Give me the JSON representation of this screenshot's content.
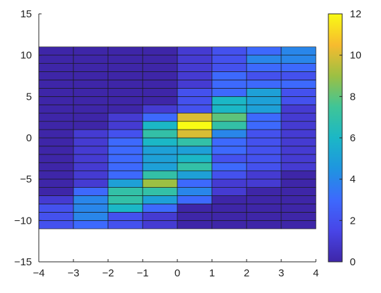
{
  "chart_data": {
    "type": "heatmap",
    "title": "",
    "xlabel": "",
    "ylabel": "",
    "xlim": [
      -4,
      4
    ],
    "ylim": [
      -15,
      15
    ],
    "x_ticks": [
      -4,
      -3,
      -2,
      -1,
      0,
      1,
      2,
      3,
      4
    ],
    "y_ticks": [
      -15,
      -10,
      -5,
      0,
      5,
      10,
      15
    ],
    "x_tick_labels": [
      "−4",
      "−3",
      "−2",
      "−1",
      "0",
      "1",
      "2",
      "3",
      "4"
    ],
    "y_tick_labels": [
      "−15",
      "−10",
      "−5",
      "0",
      "5",
      "10",
      "15"
    ],
    "x_edges": [
      -4,
      -3,
      -2,
      -1,
      0,
      1,
      2,
      3,
      4
    ],
    "y_edges": [
      -11,
      -10,
      -9,
      -8,
      -7,
      -6,
      -5,
      -4,
      -3,
      -2,
      -1,
      0,
      1,
      2,
      3,
      4,
      5,
      6,
      7,
      8,
      9,
      10,
      11
    ],
    "values": [
      [
        2,
        3,
        2,
        1,
        0,
        0,
        0,
        0
      ],
      [
        2,
        4,
        2,
        1,
        0,
        0,
        0,
        0
      ],
      [
        2,
        4,
        6,
        3,
        0,
        0,
        0,
        0
      ],
      [
        1,
        4,
        7,
        5,
        3,
        0,
        0,
        0
      ],
      [
        0,
        3,
        7,
        7,
        4,
        1,
        0,
        0
      ],
      [
        0,
        1,
        5,
        9,
        3,
        1,
        1,
        0
      ],
      [
        0,
        1,
        3,
        7,
        5,
        2,
        1,
        0
      ],
      [
        0,
        1,
        3,
        5,
        7,
        3,
        2,
        1
      ],
      [
        0,
        1,
        3,
        5,
        6,
        2,
        2,
        1
      ],
      [
        0,
        1,
        3,
        5,
        5,
        3,
        2,
        1
      ],
      [
        0,
        1,
        3,
        6,
        7,
        3,
        2,
        1
      ],
      [
        0,
        1,
        2,
        7,
        10,
        4,
        2,
        1
      ],
      [
        0,
        0,
        1,
        6,
        12,
        7,
        3,
        1
      ],
      [
        0,
        0,
        1,
        3,
        10,
        8,
        3,
        1
      ],
      [
        0,
        0,
        0,
        1,
        2,
        6,
        5,
        1
      ],
      [
        0,
        0,
        0,
        0,
        2,
        6,
        5,
        2
      ],
      [
        0,
        0,
        0,
        0,
        2,
        3,
        5,
        2
      ],
      [
        0,
        0,
        0,
        0,
        1,
        3,
        3,
        3
      ],
      [
        0,
        0,
        0,
        0,
        1,
        3,
        2,
        2
      ],
      [
        0,
        0,
        0,
        0,
        1,
        2,
        3,
        3
      ],
      [
        0,
        0,
        0,
        0,
        1,
        2,
        4,
        4
      ],
      [
        0,
        0,
        0,
        0,
        1,
        2,
        3,
        4
      ]
    ],
    "colormap": "parula",
    "colorbar": {
      "min": 0,
      "max": 12,
      "ticks": [
        0,
        2,
        4,
        6,
        8,
        10,
        12
      ],
      "tick_labels": [
        "0",
        "2",
        "4",
        "6",
        "8",
        "10",
        "12"
      ],
      "placement": "right"
    },
    "grid": false,
    "legend": "none"
  }
}
